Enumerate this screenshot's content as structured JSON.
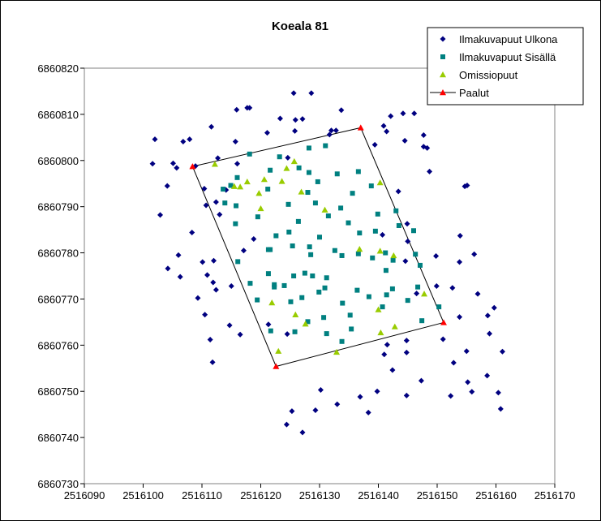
{
  "chart_data": {
    "type": "scatter",
    "title": "Koeala 81",
    "xlabel": "",
    "ylabel": "",
    "xlim": [
      2516090,
      2516170
    ],
    "ylim": [
      6860730,
      6860820
    ],
    "xticks": [
      2516090,
      2516100,
      2516110,
      2516120,
      2516130,
      2516140,
      2516150,
      2516160,
      2516170
    ],
    "yticks": [
      6860730,
      6860740,
      6860750,
      6860760,
      6860770,
      6860780,
      6860790,
      6860800,
      6860810,
      6860820
    ],
    "xtick_labels": [
      "2516090",
      "2516100",
      "2516110",
      "2516120",
      "2516130",
      "2516140",
      "2516150",
      "2516160",
      "2516170"
    ],
    "ytick_labels": [
      "6860730",
      "6860740",
      "6860750",
      "6860760",
      "6860770",
      "6860780",
      "6860790",
      "6860800",
      "6860810",
      "6860820"
    ],
    "grid": false,
    "legend_position": "top-right",
    "series": [
      {
        "name": "Ilmakuvapuut Ulkona",
        "marker": "diamond",
        "color": "#000080",
        "x": [
          2516125.6,
          2516128.6,
          2516115.9,
          2516117.7,
          2516118.1,
          2516123.3,
          2516125.9,
          2516127.1,
          2516133.7,
          2516144.2,
          2516146.1,
          2516142.1,
          2516140.9,
          2516132.0,
          2516111.6,
          2516121.1,
          2516125.8,
          2516132.8,
          2516141.4,
          2516147.7,
          2516102.0,
          2516107.9,
          2516131.7,
          2516106.8,
          2516115.7,
          2516139.4,
          2516144.5,
          2516147.7,
          2516112.7,
          2516116.0,
          2516148.3,
          2516101.6,
          2516105.1,
          2516105.7,
          2516124.6,
          2516148.7,
          2516155.1,
          2516104.1,
          2516108.9,
          2516143.4,
          2516110.4,
          2516114.1,
          2516154.7,
          2516102.9,
          2516110.7,
          2516113.0,
          2516112.4,
          2516108.3,
          2516144.9,
          2516140.7,
          2516106.0,
          2516118.8,
          2516117.1,
          2516112.0,
          2516153.9,
          2516110.1,
          2516104.2,
          2516149.8,
          2516145.0,
          2516115.0,
          2516106.3,
          2516144.6,
          2516110.9,
          2516153.8,
          2516156.3,
          2516111.9,
          2516149.9,
          2516146.5,
          2516112.4,
          2516152.6,
          2516156.9,
          2516109.3,
          2516159.7,
          2516110.5,
          2516153.8,
          2516114.7,
          2516121.3,
          2516124.5,
          2516111.4,
          2516116.5,
          2516158.6,
          2516144.8,
          2516141.5,
          2516155.0,
          2516158.9,
          2516144.8,
          2516151.0,
          2516141.0,
          2516161.1,
          2516111.8,
          2516152.8,
          2516142.4,
          2516158.5,
          2516147.3,
          2516155.2,
          2516130.2,
          2516139.8,
          2516136.9,
          2516155.9,
          2516144.8,
          2516152.3,
          2516160.4,
          2516133.0,
          2516138.3,
          2516129.3,
          2516160.8,
          2516125.3,
          2516124.4,
          2516127.1
        ],
        "y": [
          6860814.6,
          6860814.6,
          6860811.0,
          6860811.4,
          6860811.4,
          6860809.1,
          6860808.8,
          6860809.0,
          6860810.9,
          6860810.2,
          6860810.2,
          6860809.6,
          6860807.5,
          6860806.5,
          6860807.3,
          6860806.0,
          6860806.4,
          6860806.5,
          6860806.3,
          6860805.5,
          6860804.6,
          6860804.6,
          6860805.6,
          6860804.1,
          6860804.1,
          6860803.4,
          6860804.3,
          6860803.0,
          6860800.5,
          6860799.3,
          6860802.7,
          6860799.3,
          6860799.4,
          6860798.4,
          6860800.6,
          6860797.6,
          6860794.6,
          6860794.5,
          6860798.8,
          6860793.3,
          6860793.9,
          6860793.6,
          6860794.4,
          6860788.2,
          6860790.3,
          6860788.3,
          6860791.0,
          6860784.4,
          6860786.3,
          6860783.9,
          6860779.5,
          6860783.0,
          6860780.5,
          6860778.3,
          6860783.7,
          6860778.0,
          6860776.6,
          6860779.3,
          6860782.5,
          6860772.8,
          6860774.8,
          6860778.2,
          6860775.2,
          6860778.0,
          6860779.7,
          6860773.6,
          6860772.8,
          6860771.2,
          6860772.0,
          6860772.4,
          6860771.1,
          6860770.2,
          6860768.1,
          6860766.6,
          6860766.1,
          6860764.3,
          6860764.5,
          6860762.4,
          6860761.2,
          6860762.3,
          6860766.4,
          6860761.0,
          6860760.1,
          6860758.7,
          6860762.5,
          6860758.4,
          6860761.3,
          6860758.0,
          6860758.6,
          6860756.3,
          6860756.2,
          6860754.6,
          6860753.4,
          6860752.3,
          6860752.0,
          6860750.3,
          6860750.0,
          6860748.8,
          6860749.9,
          6860749.1,
          6860749.0,
          6860749.7,
          6860747.2,
          6860745.4,
          6860745.9,
          6860746.2,
          6860745.7,
          6860742.8,
          6860741.1
        ]
      },
      {
        "name": "Ilmakuvapuut Sisällä",
        "marker": "square",
        "color": "#008080",
        "x": [
          2516118.1,
          2516123.2,
          2516128.2,
          2516131.0,
          2516121.6,
          2516126.5,
          2516128.2,
          2516133.0,
          2516136.6,
          2516116.0,
          2516129.7,
          2516138.8,
          2516113.6,
          2516114.9,
          2516121.2,
          2516128.0,
          2516113.9,
          2516135.6,
          2516115.8,
          2516129.3,
          2516124.7,
          2516133.6,
          2516139.9,
          2516143.0,
          2516134.9,
          2516119.5,
          2516126.4,
          2516131.5,
          2516143.5,
          2516115.7,
          2516122.6,
          2516136.8,
          2516124.8,
          2516139.5,
          2516146.0,
          2516121.3,
          2516128.3,
          2516136.6,
          2516130.0,
          2516116.1,
          2516132.6,
          2516141.2,
          2516125.4,
          2516121.6,
          2516128.5,
          2516133.8,
          2516139.0,
          2516147.1,
          2516142.5,
          2516121.3,
          2516127.5,
          2516146.3,
          2516118.2,
          2516122.3,
          2516125.6,
          2516128.8,
          2516131.2,
          2516141.3,
          2516122.3,
          2516124.0,
          2516130.9,
          2516136.4,
          2516142.4,
          2516146.7,
          2516119.4,
          2516125.1,
          2516127.0,
          2516129.9,
          2516133.9,
          2516138.4,
          2516141.4,
          2516145.0,
          2516140.7,
          2516150.3,
          2516135.2,
          2516128.0,
          2516130.7,
          2516147.4,
          2516135.4,
          2516121.7,
          2516125.8,
          2516131.2,
          2516133.8
        ],
        "y": [
          6860801.4,
          6860800.8,
          6860802.7,
          6860803.2,
          6860797.9,
          6860798.4,
          6860797.4,
          6860797.1,
          6860797.6,
          6860796.3,
          6860795.4,
          6860794.5,
          6860793.8,
          6860794.6,
          6860793.8,
          6860793.1,
          6860790.8,
          6860792.9,
          6860790.2,
          6860790.8,
          6860790.5,
          6860789.7,
          6860788.4,
          6860789.1,
          6860786.5,
          6860787.8,
          6860786.8,
          6860788.0,
          6860785.9,
          6860786.3,
          6860783.7,
          6860784.3,
          6860784.5,
          6860784.7,
          6860784.8,
          6860780.7,
          6860781.3,
          6860779.8,
          6860783.4,
          6860778.1,
          6860780.5,
          6860780.0,
          6860781.5,
          6860780.7,
          6860779.6,
          6860779.4,
          6860778.9,
          6860777.3,
          6860778.4,
          6860775.5,
          6860775.6,
          6860779.7,
          6860773.4,
          6860773.1,
          6860775.0,
          6860775.0,
          6860774.6,
          6860776.2,
          6860772.6,
          6860772.9,
          6860772.4,
          6860771.9,
          6860772.2,
          6860772.6,
          6860769.8,
          6860769.4,
          6860770.3,
          6860771.5,
          6860769.1,
          6860770.5,
          6860770.9,
          6860769.7,
          6860768.3,
          6860768.3,
          6860766.5,
          6860765.1,
          6860766.0,
          6860765.3,
          6860763.5,
          6860763.1,
          6860762.9,
          6860762.5,
          6860760.8
        ]
      },
      {
        "name": "Omissiopuut",
        "marker": "triangle",
        "color": "#99CC00",
        "x": [
          2516125.7,
          2516112.2,
          2516124.4,
          2516120.6,
          2516123.6,
          2516115.5,
          2516116.5,
          2516117.7,
          2516119.7,
          2516126.9,
          2516140.3,
          2516120.0,
          2516130.9,
          2516136.8,
          2516140.3,
          2516142.6,
          2516147.8,
          2516121.9,
          2516140.0,
          2516125.9,
          2516127.6,
          2516140.4,
          2516142.8,
          2516123.0,
          2516132.9
        ],
        "y": [
          6860799.8,
          6860799.2,
          6860798.3,
          6860795.9,
          6860795.5,
          6860794.4,
          6860794.3,
          6860795.4,
          6860792.9,
          6860793.2,
          6860795.2,
          6860789.6,
          6860789.3,
          6860780.8,
          6860780.4,
          6860779.4,
          6860771.1,
          6860769.2,
          6860767.7,
          6860766.6,
          6860764.6,
          6860762.7,
          6860764.0,
          6860758.7,
          6860758.5
        ]
      },
      {
        "name": "Paalut",
        "marker": "triangle",
        "color": "#FF0000",
        "line_color": "#000000",
        "closed": true,
        "x": [
          2516108.4,
          2516137.0,
          2516151.1,
          2516122.6
        ],
        "y": [
          6860798.7,
          6860807.1,
          6860764.9,
          6860755.4
        ]
      }
    ]
  }
}
